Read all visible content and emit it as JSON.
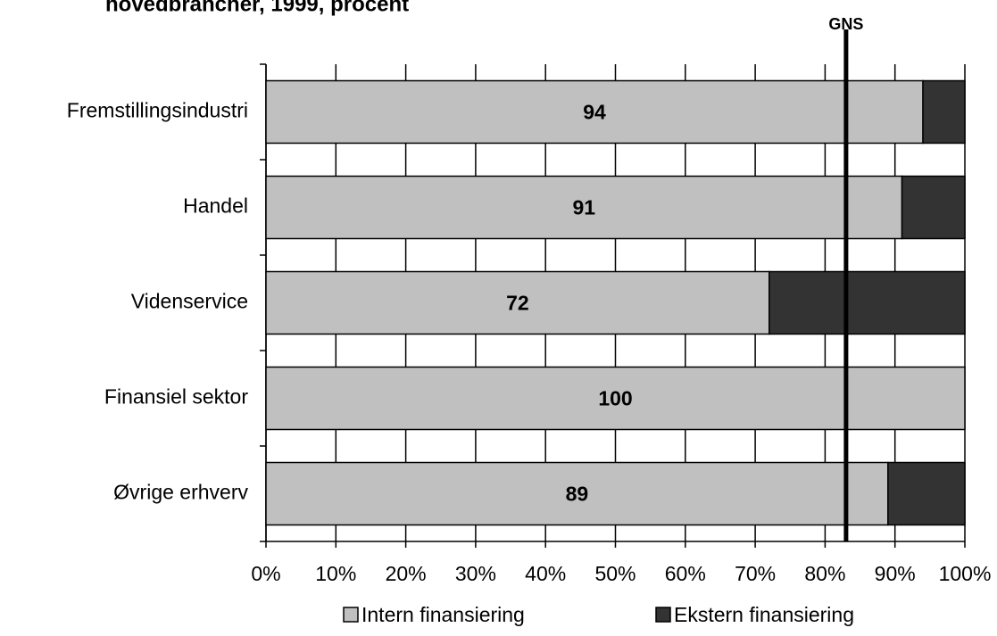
{
  "chart_data": {
    "type": "bar",
    "orientation": "horizontal",
    "stacked": true,
    "title": "hovedbrancher, 1999, procent",
    "categories": [
      "Fremstillingsindustri",
      "Handel",
      "Videnservice",
      "Finansiel sektor",
      "Øvrige erhverv"
    ],
    "series": [
      {
        "name": "Intern finansiering",
        "color": "#c0c0c0",
        "values": [
          94,
          91,
          72,
          100,
          89
        ]
      },
      {
        "name": "Ekstern finansiering",
        "color": "#333333",
        "values": [
          6,
          9,
          28,
          0,
          11
        ]
      }
    ],
    "xlim": [
      0,
      100
    ],
    "xticks": [
      {
        "value": 0,
        "label": "0%"
      },
      {
        "value": 10,
        "label": "10%"
      },
      {
        "value": 20,
        "label": "20%"
      },
      {
        "value": 30,
        "label": "30%"
      },
      {
        "value": 40,
        "label": "40%"
      },
      {
        "value": 50,
        "label": "50%"
      },
      {
        "value": 60,
        "label": "60%"
      },
      {
        "value": 70,
        "label": "70%"
      },
      {
        "value": 80,
        "label": "80%"
      },
      {
        "value": 90,
        "label": "90%"
      },
      {
        "value": 100,
        "label": "100%"
      }
    ],
    "grid": true,
    "reference_line": {
      "label": "GNS",
      "value": 83
    },
    "legend": "bottom"
  }
}
